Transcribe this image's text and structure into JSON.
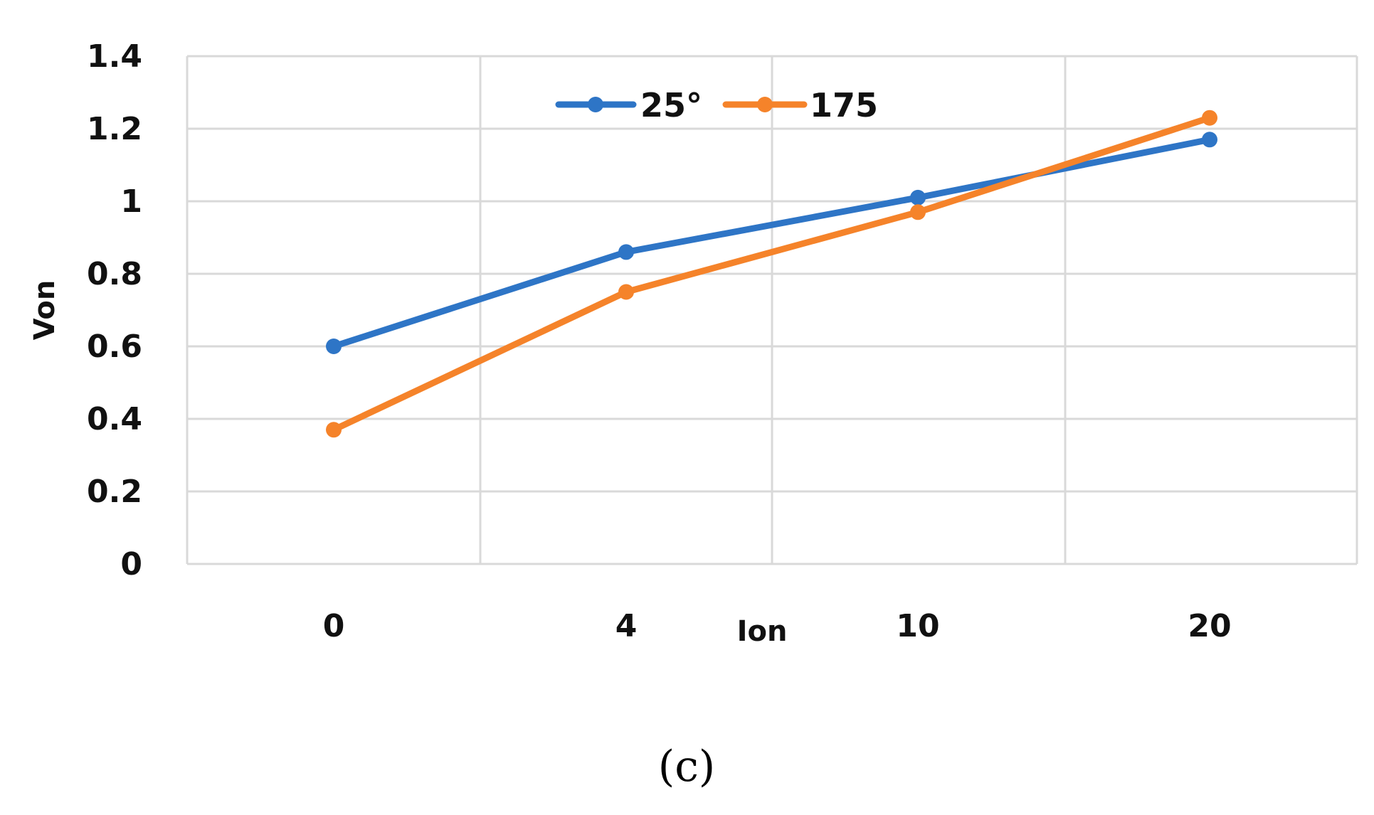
{
  "chart_data": {
    "type": "line",
    "panel_label": "(c)",
    "xlabel": "Ion",
    "ylabel": "Von",
    "categories": [
      "0",
      "4",
      "10",
      "20"
    ],
    "ylim": [
      0,
      1.4
    ],
    "yticks": [
      "0",
      "0.2",
      "0.4",
      "0.6",
      "0.8",
      "1",
      "1.2",
      "1.4"
    ],
    "grid": true,
    "legend_position": "top-center",
    "series": [
      {
        "name": "25°",
        "color": "#2E75C6",
        "values": [
          0.6,
          0.86,
          1.01,
          1.17
        ]
      },
      {
        "name": "175",
        "color": "#F5832A",
        "values": [
          0.37,
          0.75,
          0.97,
          1.23
        ]
      }
    ]
  }
}
